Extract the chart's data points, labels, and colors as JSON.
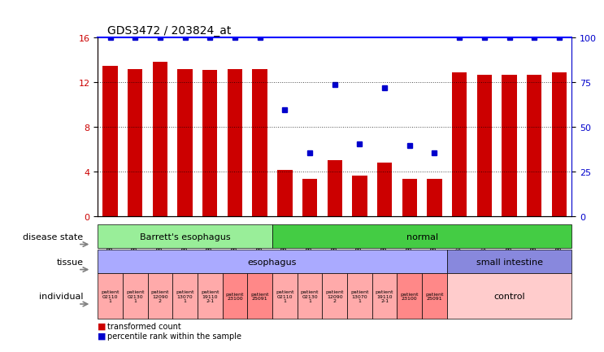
{
  "title": "GDS3472 / 203824_at",
  "samples": [
    "GSM327649",
    "GSM327650",
    "GSM327651",
    "GSM327652",
    "GSM327653",
    "GSM327654",
    "GSM327655",
    "GSM327642",
    "GSM327643",
    "GSM327644",
    "GSM327645",
    "GSM327646",
    "GSM327647",
    "GSM327648",
    "GSM327637",
    "GSM327638",
    "GSM327639",
    "GSM327640",
    "GSM327641"
  ],
  "bar_heights": [
    13.5,
    13.2,
    13.8,
    13.2,
    13.1,
    13.2,
    13.2,
    4.1,
    3.3,
    5.0,
    3.6,
    4.8,
    3.3,
    3.3,
    12.9,
    12.7,
    12.7,
    12.7,
    12.9
  ],
  "dot_y": [
    16,
    16,
    16,
    16,
    16,
    16,
    16,
    9.5,
    5.7,
    11.8,
    6.5,
    11.5,
    6.3,
    5.7,
    16,
    16,
    16,
    16,
    16
  ],
  "dot_visible": [
    true,
    true,
    true,
    true,
    true,
    true,
    true,
    true,
    true,
    true,
    true,
    true,
    true,
    true,
    true,
    true,
    true,
    true,
    true
  ],
  "ylim": [
    0,
    16
  ],
  "yticks_left": [
    0,
    4,
    8,
    12,
    16
  ],
  "yticks_right": [
    0,
    25,
    50,
    75,
    100
  ],
  "bar_color": "#cc0000",
  "dot_color": "#0000cc",
  "bg_color": "#ffffff",
  "disease_state_groups": [
    {
      "label": "Barrett's esophagus",
      "start": 0,
      "end": 7,
      "color": "#99ee99"
    },
    {
      "label": "normal",
      "start": 7,
      "end": 19,
      "color": "#44cc44"
    }
  ],
  "tissue_groups": [
    {
      "label": "esophagus",
      "start": 0,
      "end": 14,
      "color": "#aaaaff"
    },
    {
      "label": "small intestine",
      "start": 14,
      "end": 19,
      "color": "#8888dd"
    }
  ],
  "individual_groups": [
    {
      "label": "patient\n02110\n1",
      "start": 0,
      "end": 1,
      "color": "#ffaaaa"
    },
    {
      "label": "patient\n02130\n1",
      "start": 1,
      "end": 2,
      "color": "#ffaaaa"
    },
    {
      "label": "patient\n12090\n2",
      "start": 2,
      "end": 3,
      "color": "#ffaaaa"
    },
    {
      "label": "patient\n13070\n1",
      "start": 3,
      "end": 4,
      "color": "#ffaaaa"
    },
    {
      "label": "patient\n19110\n2-1",
      "start": 4,
      "end": 5,
      "color": "#ffaaaa"
    },
    {
      "label": "patient\n23100",
      "start": 5,
      "end": 6,
      "color": "#ff8888"
    },
    {
      "label": "patient\n25091",
      "start": 6,
      "end": 7,
      "color": "#ff8888"
    },
    {
      "label": "patient\n02110\n1",
      "start": 7,
      "end": 8,
      "color": "#ffaaaa"
    },
    {
      "label": "patient\n02130\n1",
      "start": 8,
      "end": 9,
      "color": "#ffaaaa"
    },
    {
      "label": "patient\n12090\n2",
      "start": 9,
      "end": 10,
      "color": "#ffaaaa"
    },
    {
      "label": "patient\n13070\n1",
      "start": 10,
      "end": 11,
      "color": "#ffaaaa"
    },
    {
      "label": "patient\n19110\n2-1",
      "start": 11,
      "end": 12,
      "color": "#ffaaaa"
    },
    {
      "label": "patient\n23100",
      "start": 12,
      "end": 13,
      "color": "#ff8888"
    },
    {
      "label": "patient\n25091",
      "start": 13,
      "end": 14,
      "color": "#ff8888"
    },
    {
      "label": "control",
      "start": 14,
      "end": 19,
      "color": "#ffcccc"
    }
  ],
  "left_labels": [
    "disease state",
    "tissue",
    "individual"
  ],
  "legend_items": [
    {
      "color": "#cc0000",
      "label": "transformed count"
    },
    {
      "color": "#0000cc",
      "label": "percentile rank within the sample"
    }
  ]
}
